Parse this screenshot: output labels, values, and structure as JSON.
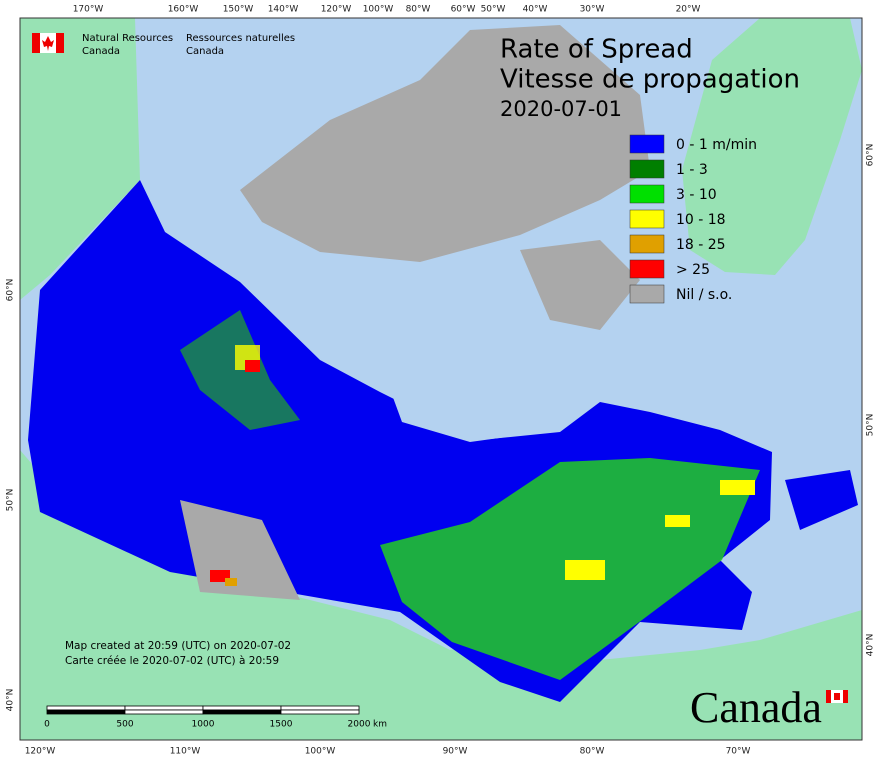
{
  "header": {
    "en": [
      "Natural Resources",
      "Canada"
    ],
    "fr": [
      "Ressources naturelles",
      "Canada"
    ]
  },
  "title": [
    "Rate of Spread",
    "Vitesse de propagation",
    "2020-07-01"
  ],
  "legend": {
    "items": [
      {
        "color": "#0000ff",
        "label": "0 - 1 m/min"
      },
      {
        "color": "#007f00",
        "label": "1 - 3"
      },
      {
        "color": "#00e000",
        "label": "3 - 10"
      },
      {
        "color": "#ffff00",
        "label": "10 - 18"
      },
      {
        "color": "#e0a000",
        "label": "18 - 25"
      },
      {
        "color": "#ff0000",
        "label": "> 25"
      },
      {
        "color": "#a9a9a9",
        "label": "Nil / s.o."
      }
    ]
  },
  "graticule": {
    "top": [
      "170°W",
      "160°W",
      "150°W",
      "140°W",
      "120°W",
      "100°W",
      "80°W",
      "60°W",
      "50°W",
      "40°W",
      "30°W",
      "20°W"
    ],
    "bottom": [
      "120°W",
      "110°W",
      "100°W",
      "90°W",
      "80°W",
      "70°W"
    ],
    "left": [
      "60°N",
      "50°N",
      "40°N"
    ],
    "right": [
      "60°N",
      "50°N",
      "40°N"
    ]
  },
  "notes": [
    "Map created at 20:59 (UTC) on 2020-07-02",
    "Carte créée le 2020-07-02 (UTC) à 20:59"
  ],
  "scale_bar": {
    "labels": [
      "0",
      "500",
      "1000",
      "1500",
      "2000"
    ],
    "unit": "km"
  },
  "wordmark": "Canada"
}
